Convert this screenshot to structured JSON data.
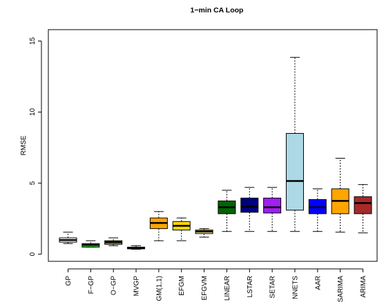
{
  "chart_data": {
    "type": "boxplot",
    "title": "1−min CA Loop",
    "xlabel": "",
    "ylabel": "RMSE",
    "ylim": [
      -0.5,
      15.8
    ],
    "yticks": [
      0,
      5,
      10,
      15
    ],
    "ytick_labels": [
      "0",
      "5",
      "10",
      "15"
    ],
    "grid": false,
    "legend": "none",
    "boxes": [
      {
        "label": "GP",
        "color": "#ffffff",
        "min": 0.75,
        "q1": 0.85,
        "median": 1.0,
        "q3": 1.15,
        "max": 1.55
      },
      {
        "label": "F−GP",
        "color": "#33cc33",
        "min": 0.5,
        "q1": 0.5,
        "median": 0.65,
        "q3": 0.75,
        "max": 0.95
      },
      {
        "label": "O−GP",
        "color": "#8b8b28",
        "min": 0.6,
        "q1": 0.7,
        "median": 0.85,
        "q3": 0.95,
        "max": 1.15
      },
      {
        "label": "MVGP",
        "color": "#4a4a4a",
        "min": 0.35,
        "q1": 0.38,
        "median": 0.42,
        "q3": 0.5,
        "max": 0.6
      },
      {
        "label": "GM(1,1)",
        "color": "#ffa500",
        "min": 0.95,
        "q1": 1.8,
        "median": 2.2,
        "q3": 2.55,
        "max": 3.0
      },
      {
        "label": "EFGM",
        "color": "#ffd700",
        "min": 0.95,
        "q1": 1.7,
        "median": 2.0,
        "q3": 2.3,
        "max": 2.55
      },
      {
        "label": "EFGVM",
        "color": "#eedd82",
        "min": 1.2,
        "q1": 1.45,
        "median": 1.6,
        "q3": 1.7,
        "max": 1.8
      },
      {
        "label": "LINEAR",
        "color": "#006400",
        "min": 1.6,
        "q1": 2.85,
        "median": 3.3,
        "q3": 3.75,
        "max": 4.5
      },
      {
        "label": "LSTAR",
        "color": "#000080",
        "min": 1.6,
        "q1": 2.95,
        "median": 3.35,
        "q3": 3.95,
        "max": 4.7
      },
      {
        "label": "SETAR",
        "color": "#a020f0",
        "min": 1.6,
        "q1": 2.9,
        "median": 3.3,
        "q3": 3.95,
        "max": 4.7
      },
      {
        "label": "NNETS",
        "color": "#add8e6",
        "min": 1.6,
        "q1": 3.1,
        "median": 5.15,
        "q3": 8.5,
        "max": 13.85
      },
      {
        "label": "AAR",
        "color": "#0000ff",
        "min": 1.6,
        "q1": 2.85,
        "median": 3.3,
        "q3": 3.85,
        "max": 4.6
      },
      {
        "label": "SARIMA",
        "color": "#ffa500",
        "min": 1.55,
        "q1": 2.85,
        "median": 3.75,
        "q3": 4.6,
        "max": 6.75
      },
      {
        "label": "ARIMA",
        "color": "#a52a2a",
        "min": 1.5,
        "q1": 2.85,
        "median": 3.6,
        "q3": 4.05,
        "max": 4.9
      }
    ]
  }
}
